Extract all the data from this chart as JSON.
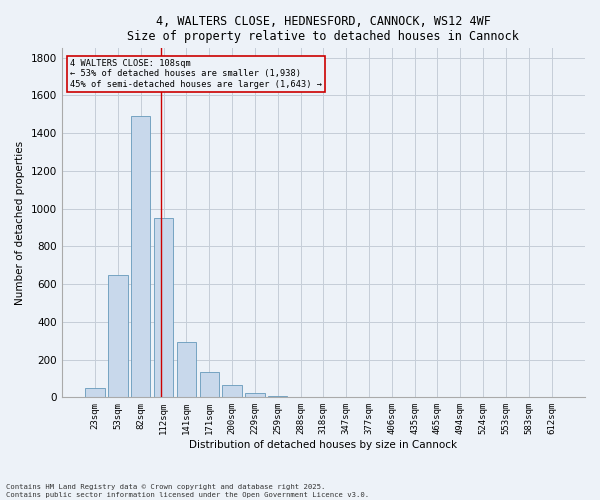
{
  "title_line1": "4, WALTERS CLOSE, HEDNESFORD, CANNOCK, WS12 4WF",
  "title_line2": "Size of property relative to detached houses in Cannock",
  "xlabel": "Distribution of detached houses by size in Cannock",
  "ylabel": "Number of detached properties",
  "categories": [
    "23sqm",
    "53sqm",
    "82sqm",
    "112sqm",
    "141sqm",
    "171sqm",
    "200sqm",
    "229sqm",
    "259sqm",
    "288sqm",
    "318sqm",
    "347sqm",
    "377sqm",
    "406sqm",
    "435sqm",
    "465sqm",
    "494sqm",
    "524sqm",
    "553sqm",
    "583sqm",
    "612sqm"
  ],
  "values": [
    50,
    650,
    1490,
    950,
    295,
    135,
    65,
    22,
    8,
    4,
    3,
    2,
    1,
    1,
    0,
    0,
    0,
    0,
    0,
    0,
    0
  ],
  "bar_color": "#c8d8eb",
  "bar_edge_color": "#6699bb",
  "grid_color": "#c5cdd8",
  "bg_color": "#edf2f8",
  "vline_x": 2.88,
  "vline_color": "#cc0000",
  "annotation_text": "4 WALTERS CLOSE: 108sqm\n← 53% of detached houses are smaller (1,938)\n45% of semi-detached houses are larger (1,643) →",
  "annotation_box_color": "#cc0000",
  "ylim": [
    0,
    1850
  ],
  "yticks": [
    0,
    200,
    400,
    600,
    800,
    1000,
    1200,
    1400,
    1600,
    1800
  ],
  "footer_line1": "Contains HM Land Registry data © Crown copyright and database right 2025.",
  "footer_line2": "Contains public sector information licensed under the Open Government Licence v3.0."
}
